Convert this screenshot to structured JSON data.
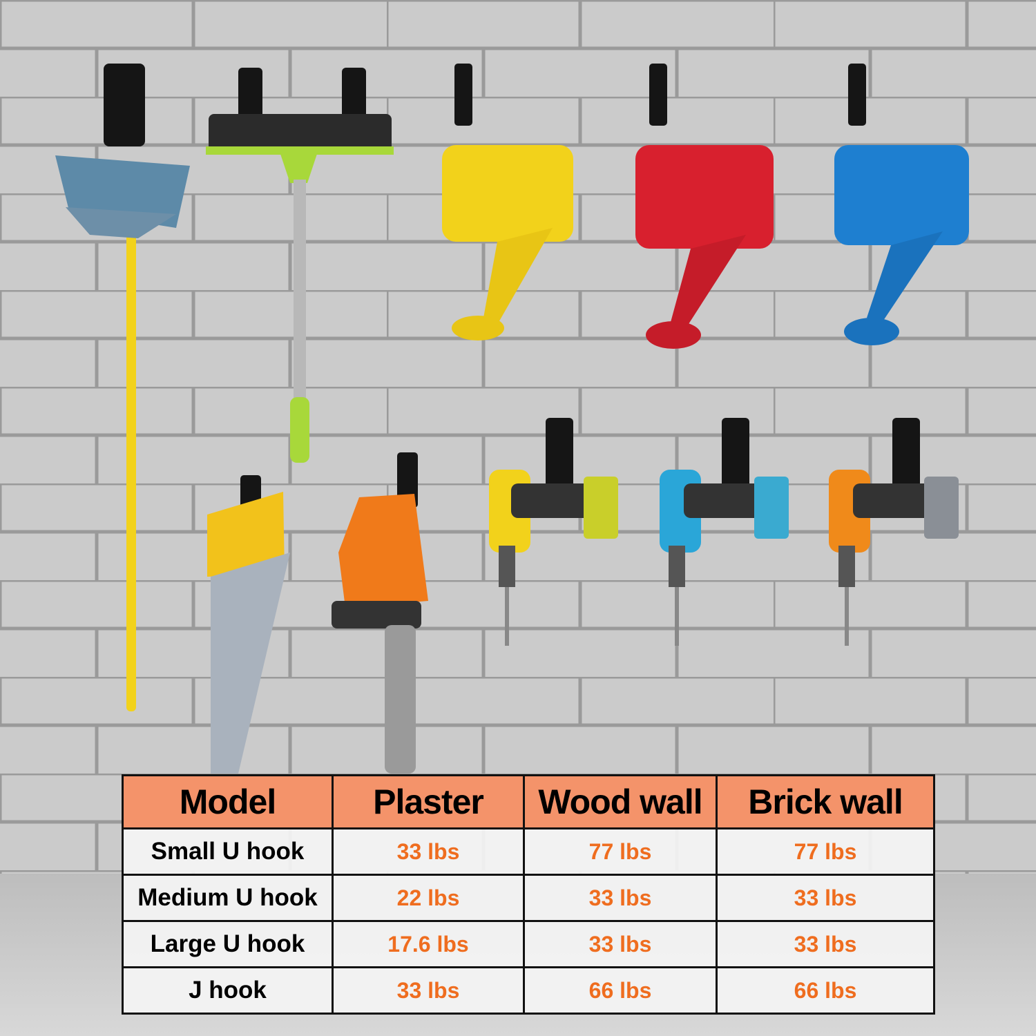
{
  "scene": {
    "items": [
      {
        "name": "broom",
        "color": "#f2d21b"
      },
      {
        "name": "squeegee",
        "color": "#a8d83a"
      },
      {
        "name": "watering-can",
        "color": "#f2d21b"
      },
      {
        "name": "watering-can",
        "color": "#d8202e"
      },
      {
        "name": "watering-can",
        "color": "#1e7fd0"
      },
      {
        "name": "hand-saw",
        "color": "#f2c21b"
      },
      {
        "name": "chainsaw",
        "color": "#f07a1a"
      },
      {
        "name": "drill",
        "color": "#f2d21b"
      },
      {
        "name": "drill",
        "color": "#2aa6d8"
      },
      {
        "name": "drill",
        "color": "#f08a1a"
      }
    ],
    "hook_color": "#151515",
    "wall_color": "#c9c9c9"
  },
  "table": {
    "header_color": "#f4936a",
    "value_color": "#ef6d1f",
    "headers": [
      "Model",
      "Plaster",
      "Wood wall",
      "Brick wall"
    ],
    "rows": [
      {
        "model": "Small U hook",
        "plaster": "33 lbs",
        "wood": "77 lbs",
        "brick": "77 lbs"
      },
      {
        "model": "Medium U hook",
        "plaster": "22 lbs",
        "wood": "33 lbs",
        "brick": "33 lbs"
      },
      {
        "model": "Large U hook",
        "plaster": "17.6 lbs",
        "wood": "33 lbs",
        "brick": "33 lbs"
      },
      {
        "model": "J hook",
        "plaster": "33 lbs",
        "wood": "66 lbs",
        "brick": "66 lbs"
      }
    ]
  }
}
